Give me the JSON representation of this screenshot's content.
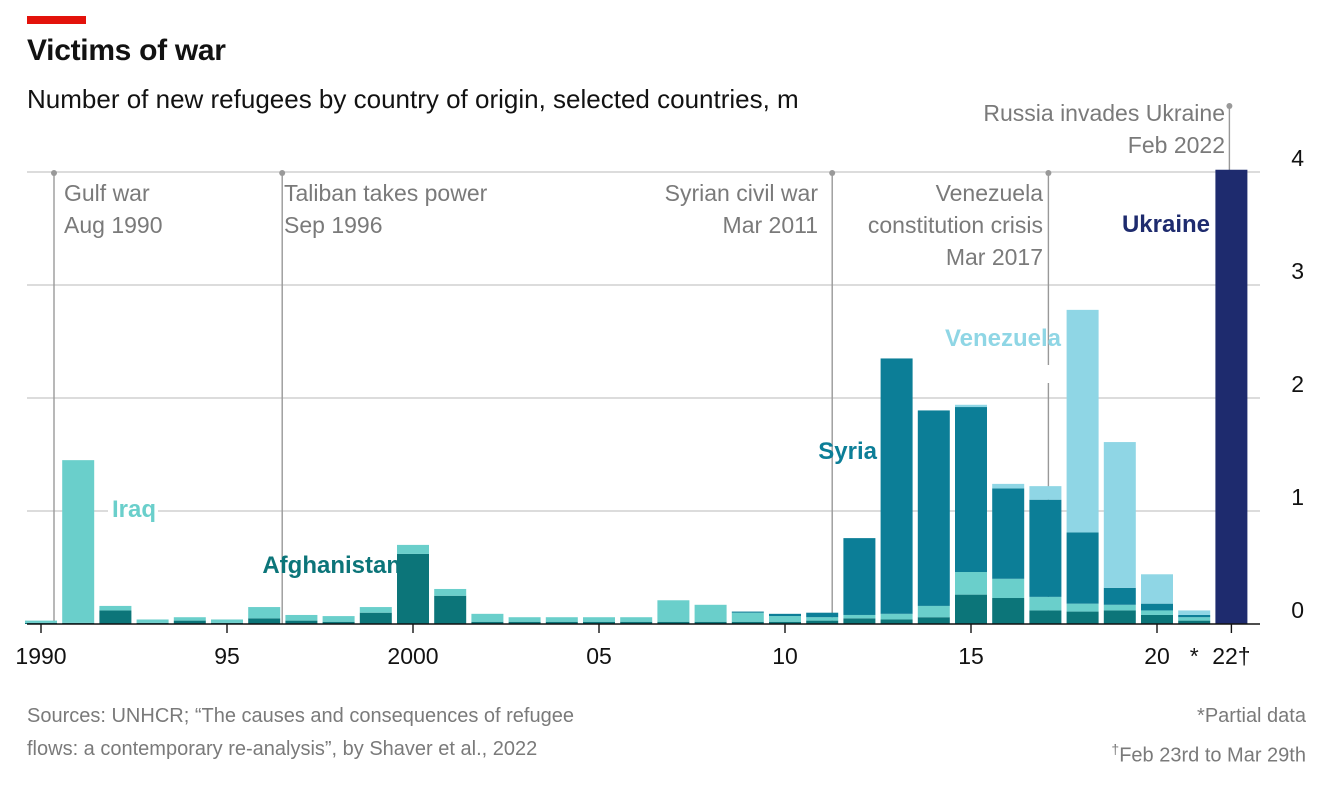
{
  "header": {
    "title": "Victims of war",
    "subtitle": "Number of new refugees by country of origin, selected countries, m"
  },
  "footer": {
    "source_line1": "Sources: UNHCR; “The causes and consequences of refugee",
    "source_line2": "flows: a contemporary re-analysis”, by Shaver et al., 2022",
    "note_partial": "*Partial data",
    "note_range_mark": "†",
    "note_range": "Feb 23rd to Mar 29th"
  },
  "colors": {
    "iraq": "#6acfcb",
    "afghanistan": "#0c7579",
    "syria": "#0c7e97",
    "venezuela": "#8fd6e5",
    "ukraine": "#1e2b6e",
    "grid": "#c8c8c8",
    "annotation": "#999999",
    "brand_red": "#e3120b"
  },
  "chart_data": {
    "type": "bar",
    "stacked": true,
    "ylabel": "",
    "ylim": [
      0,
      4
    ],
    "yticks": [
      "0",
      "1",
      "2",
      "3",
      "4"
    ],
    "grid": true,
    "y_axis_position": "right",
    "x": [
      1990,
      1991,
      1992,
      1993,
      1994,
      1995,
      1996,
      1997,
      1998,
      1999,
      2000,
      2001,
      2002,
      2003,
      2004,
      2005,
      2006,
      2007,
      2008,
      2009,
      2010,
      2011,
      2012,
      2013,
      2014,
      2015,
      2016,
      2017,
      2018,
      2019,
      2020,
      2021,
      2022
    ],
    "xtick_labels": [
      {
        "year": 1990,
        "label": "1990"
      },
      {
        "year": 1995,
        "label": "95"
      },
      {
        "year": 2000,
        "label": "2000"
      },
      {
        "year": 2005,
        "label": "05"
      },
      {
        "year": 2010,
        "label": "10"
      },
      {
        "year": 2015,
        "label": "15"
      },
      {
        "year": 2020,
        "label": "20"
      },
      {
        "year": 2021,
        "label": "*"
      },
      {
        "year": 2022,
        "label": "22†"
      }
    ],
    "series": [
      {
        "name": "Afghanistan",
        "color_key": "afghanistan",
        "values": [
          0.01,
          0.01,
          0.12,
          0.01,
          0.03,
          0.01,
          0.05,
          0.03,
          0.02,
          0.1,
          0.62,
          0.25,
          0.02,
          0.02,
          0.02,
          0.02,
          0.02,
          0.02,
          0.02,
          0.02,
          0.02,
          0.03,
          0.05,
          0.04,
          0.06,
          0.26,
          0.23,
          0.12,
          0.11,
          0.12,
          0.08,
          0.03,
          0
        ]
      },
      {
        "name": "Iraq",
        "color_key": "iraq",
        "values": [
          0.02,
          1.44,
          0.04,
          0.03,
          0.03,
          0.03,
          0.1,
          0.05,
          0.05,
          0.05,
          0.08,
          0.06,
          0.07,
          0.04,
          0.04,
          0.04,
          0.04,
          0.19,
          0.15,
          0.08,
          0.05,
          0.03,
          0.03,
          0.05,
          0.1,
          0.2,
          0.17,
          0.12,
          0.07,
          0.05,
          0.04,
          0.03,
          0
        ]
      },
      {
        "name": "Syria",
        "color_key": "syria",
        "values": [
          0,
          0,
          0,
          0,
          0,
          0,
          0,
          0,
          0,
          0,
          0,
          0,
          0,
          0,
          0,
          0,
          0,
          0,
          0,
          0.01,
          0.02,
          0.04,
          0.68,
          2.26,
          1.73,
          1.46,
          0.8,
          0.86,
          0.63,
          0.15,
          0.06,
          0.02,
          0
        ]
      },
      {
        "name": "Venezuela",
        "color_key": "venezuela",
        "values": [
          0,
          0,
          0,
          0,
          0,
          0,
          0,
          0,
          0,
          0,
          0,
          0,
          0,
          0,
          0,
          0,
          0,
          0,
          0,
          0,
          0,
          0,
          0,
          0,
          0,
          0.02,
          0.04,
          0.12,
          1.97,
          1.29,
          0.26,
          0.04,
          0
        ]
      },
      {
        "name": "Ukraine",
        "color_key": "ukraine",
        "values": [
          0,
          0,
          0,
          0,
          0,
          0,
          0,
          0,
          0,
          0,
          0,
          0,
          0,
          0,
          0,
          0,
          0,
          0,
          0,
          0,
          0,
          0,
          0,
          0,
          0,
          0,
          0,
          0,
          0,
          0,
          0,
          0,
          4.02
        ]
      }
    ],
    "series_labels": [
      {
        "text": "Iraq",
        "color_key": "iraq"
      },
      {
        "text": "Afghanistan",
        "color_key": "afghanistan"
      },
      {
        "text": "Syria",
        "color_key": "syria"
      },
      {
        "text": "Venezuela",
        "color_key": "venezuela"
      },
      {
        "text": "Ukraine",
        "color_key": "ukraine"
      }
    ],
    "annotations": [
      {
        "year": 1990,
        "line1": "Gulf war",
        "line2": "Aug 1990"
      },
      {
        "year": 1996,
        "line1": "Taliban takes power",
        "line2": "Sep 1996"
      },
      {
        "year": 2011,
        "line1": "Syrian civil war",
        "line2": "Mar 2011"
      },
      {
        "year": 2017,
        "line1": "Venezuela",
        "line2": "constitution crisis",
        "line3": "Mar 2017"
      },
      {
        "year": 2022,
        "line1": "Russia invades Ukraine",
        "line2": "Feb 2022"
      }
    ]
  }
}
